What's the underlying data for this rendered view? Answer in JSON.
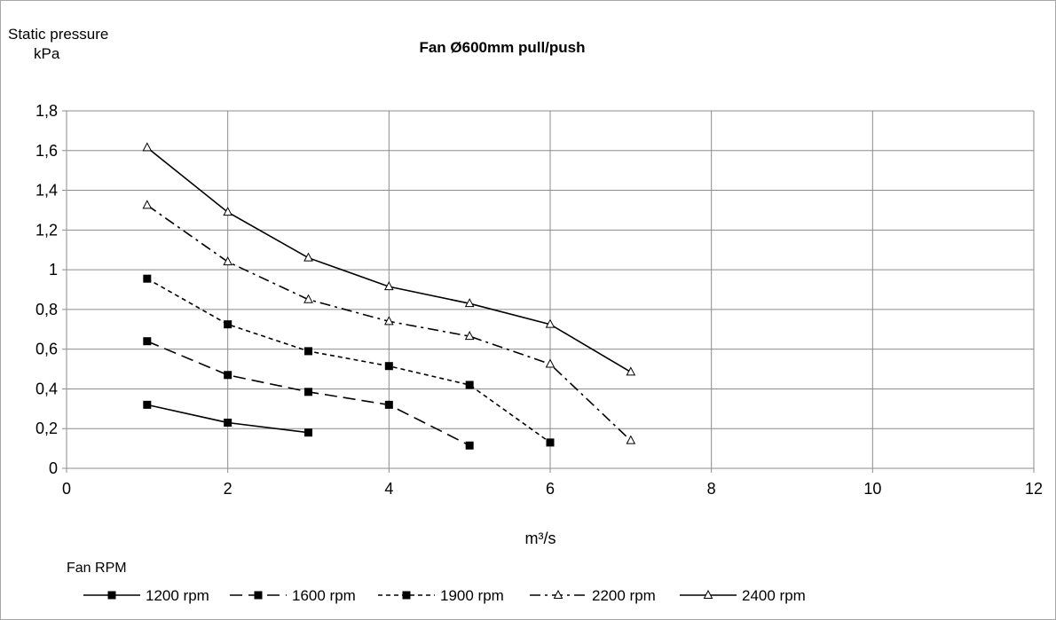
{
  "chart_data": {
    "type": "line",
    "title": "Fan Ø600mm pull/push",
    "ylabel_line1": "Static pressure",
    "ylabel_line2": "kPa",
    "xlabel": "m³/s",
    "legend_title": "Fan RPM",
    "legend_position": "bottom",
    "grid": true,
    "xlim": [
      0,
      12
    ],
    "ylim": [
      0,
      1.8
    ],
    "x_ticks": [
      0,
      2,
      4,
      6,
      8,
      10,
      12
    ],
    "x_tick_labels": [
      "0",
      "2",
      "4",
      "6",
      "8",
      "10",
      "12"
    ],
    "y_ticks": [
      0,
      0.2,
      0.4,
      0.6,
      0.8,
      1,
      1.2,
      1.4,
      1.6,
      1.8
    ],
    "y_tick_labels": [
      "0",
      "0,2",
      "0,4",
      "0,6",
      "0,8",
      "1",
      "1,2",
      "1,4",
      "1,6",
      "1,8"
    ],
    "series": [
      {
        "name": "1200 rpm",
        "marker": "square",
        "dash": "solid",
        "x": [
          1,
          2,
          3
        ],
        "y": [
          0.32,
          0.23,
          0.18
        ]
      },
      {
        "name": "1600 rpm",
        "marker": "square",
        "dash": "longdash",
        "x": [
          1,
          2,
          3,
          4,
          5
        ],
        "y": [
          0.64,
          0.47,
          0.385,
          0.32,
          0.115
        ]
      },
      {
        "name": "1900 rpm",
        "marker": "square",
        "dash": "shortdash",
        "x": [
          1,
          2,
          3,
          4,
          5,
          6
        ],
        "y": [
          0.955,
          0.725,
          0.59,
          0.515,
          0.42,
          0.13
        ]
      },
      {
        "name": "2200 rpm",
        "marker": "triangle",
        "dash": "dashdot",
        "x": [
          1,
          2,
          3,
          4,
          5,
          6,
          7
        ],
        "y": [
          1.325,
          1.04,
          0.85,
          0.74,
          0.665,
          0.525,
          0.14
        ]
      },
      {
        "name": "2400 rpm",
        "marker": "triangle",
        "dash": "solid",
        "x": [
          1,
          2,
          3,
          4,
          5,
          6,
          7
        ],
        "y": [
          1.615,
          1.29,
          1.06,
          0.915,
          0.83,
          0.725,
          0.485
        ]
      }
    ],
    "colors": {
      "line": "#000000",
      "grid": "#8c8c8c",
      "frame": "#a6a6a6"
    }
  }
}
